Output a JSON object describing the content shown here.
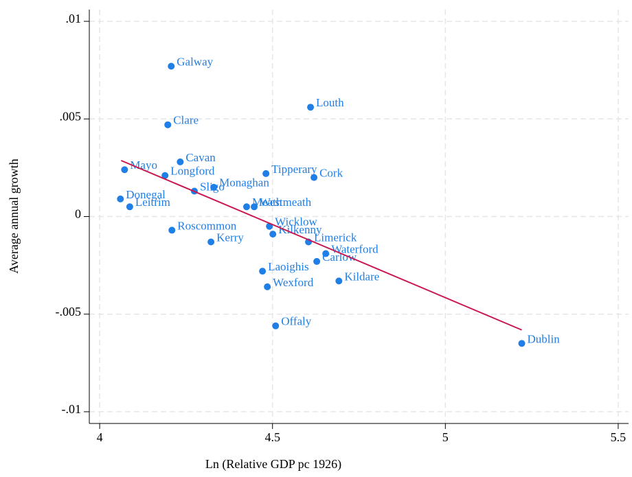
{
  "chart_data": {
    "type": "scatter",
    "xlabel": "Ln (Relative GDP pc 1926)",
    "ylabel": "Average annual growth",
    "xlim": [
      3.97,
      5.53
    ],
    "ylim": [
      -0.0106,
      0.0106
    ],
    "xticks": [
      4,
      4.5,
      5,
      5.5
    ],
    "yticks": [
      {
        "value": 0.01,
        "label": ".01"
      },
      {
        "value": 0.005,
        "label": ".005"
      },
      0,
      {
        "value": -0.005,
        "label": "-.005"
      },
      {
        "value": -0.01,
        "label": "-.01"
      }
    ],
    "grid": true,
    "color": "#1f7fe6",
    "labels": [
      "Galway",
      "Louth",
      "Clare",
      "Cavan",
      "Mayo",
      "Longford",
      "Tipperary",
      "Cork",
      "Sligo",
      "Monaghan",
      "Donegal",
      "Leitrim",
      "Meath",
      "Westmeath",
      "Roscommon",
      "Wicklow",
      "Kilkenny",
      "Kerry",
      "Limerick",
      "Waterford",
      "Carlow",
      "Kildare",
      "Laoighis",
      "Wexford",
      "Offaly",
      "Dublin"
    ],
    "x": [
      4.207,
      4.61,
      4.197,
      4.233,
      4.072,
      4.189,
      4.481,
      4.62,
      4.274,
      4.33,
      4.06,
      4.087,
      4.425,
      4.447,
      4.209,
      4.491,
      4.501,
      4.322,
      4.604,
      4.654,
      4.628,
      4.692,
      4.471,
      4.485,
      4.509,
      5.221
    ],
    "y": [
      0.0077,
      0.0056,
      0.0047,
      0.0028,
      0.0024,
      0.0021,
      0.0022,
      0.002,
      0.0013,
      0.0015,
      0.0009,
      0.0005,
      0.0005,
      0.0005,
      -0.0007,
      -0.0005,
      -0.0009,
      -0.0013,
      -0.0013,
      -0.0019,
      -0.0023,
      -0.0033,
      -0.0028,
      -0.0036,
      -0.0056,
      -0.0065
    ],
    "fit": {
      "x": [
        4.062,
        5.221
      ],
      "y": [
        0.00287,
        -0.00581
      ],
      "color": "#c8184f"
    }
  }
}
